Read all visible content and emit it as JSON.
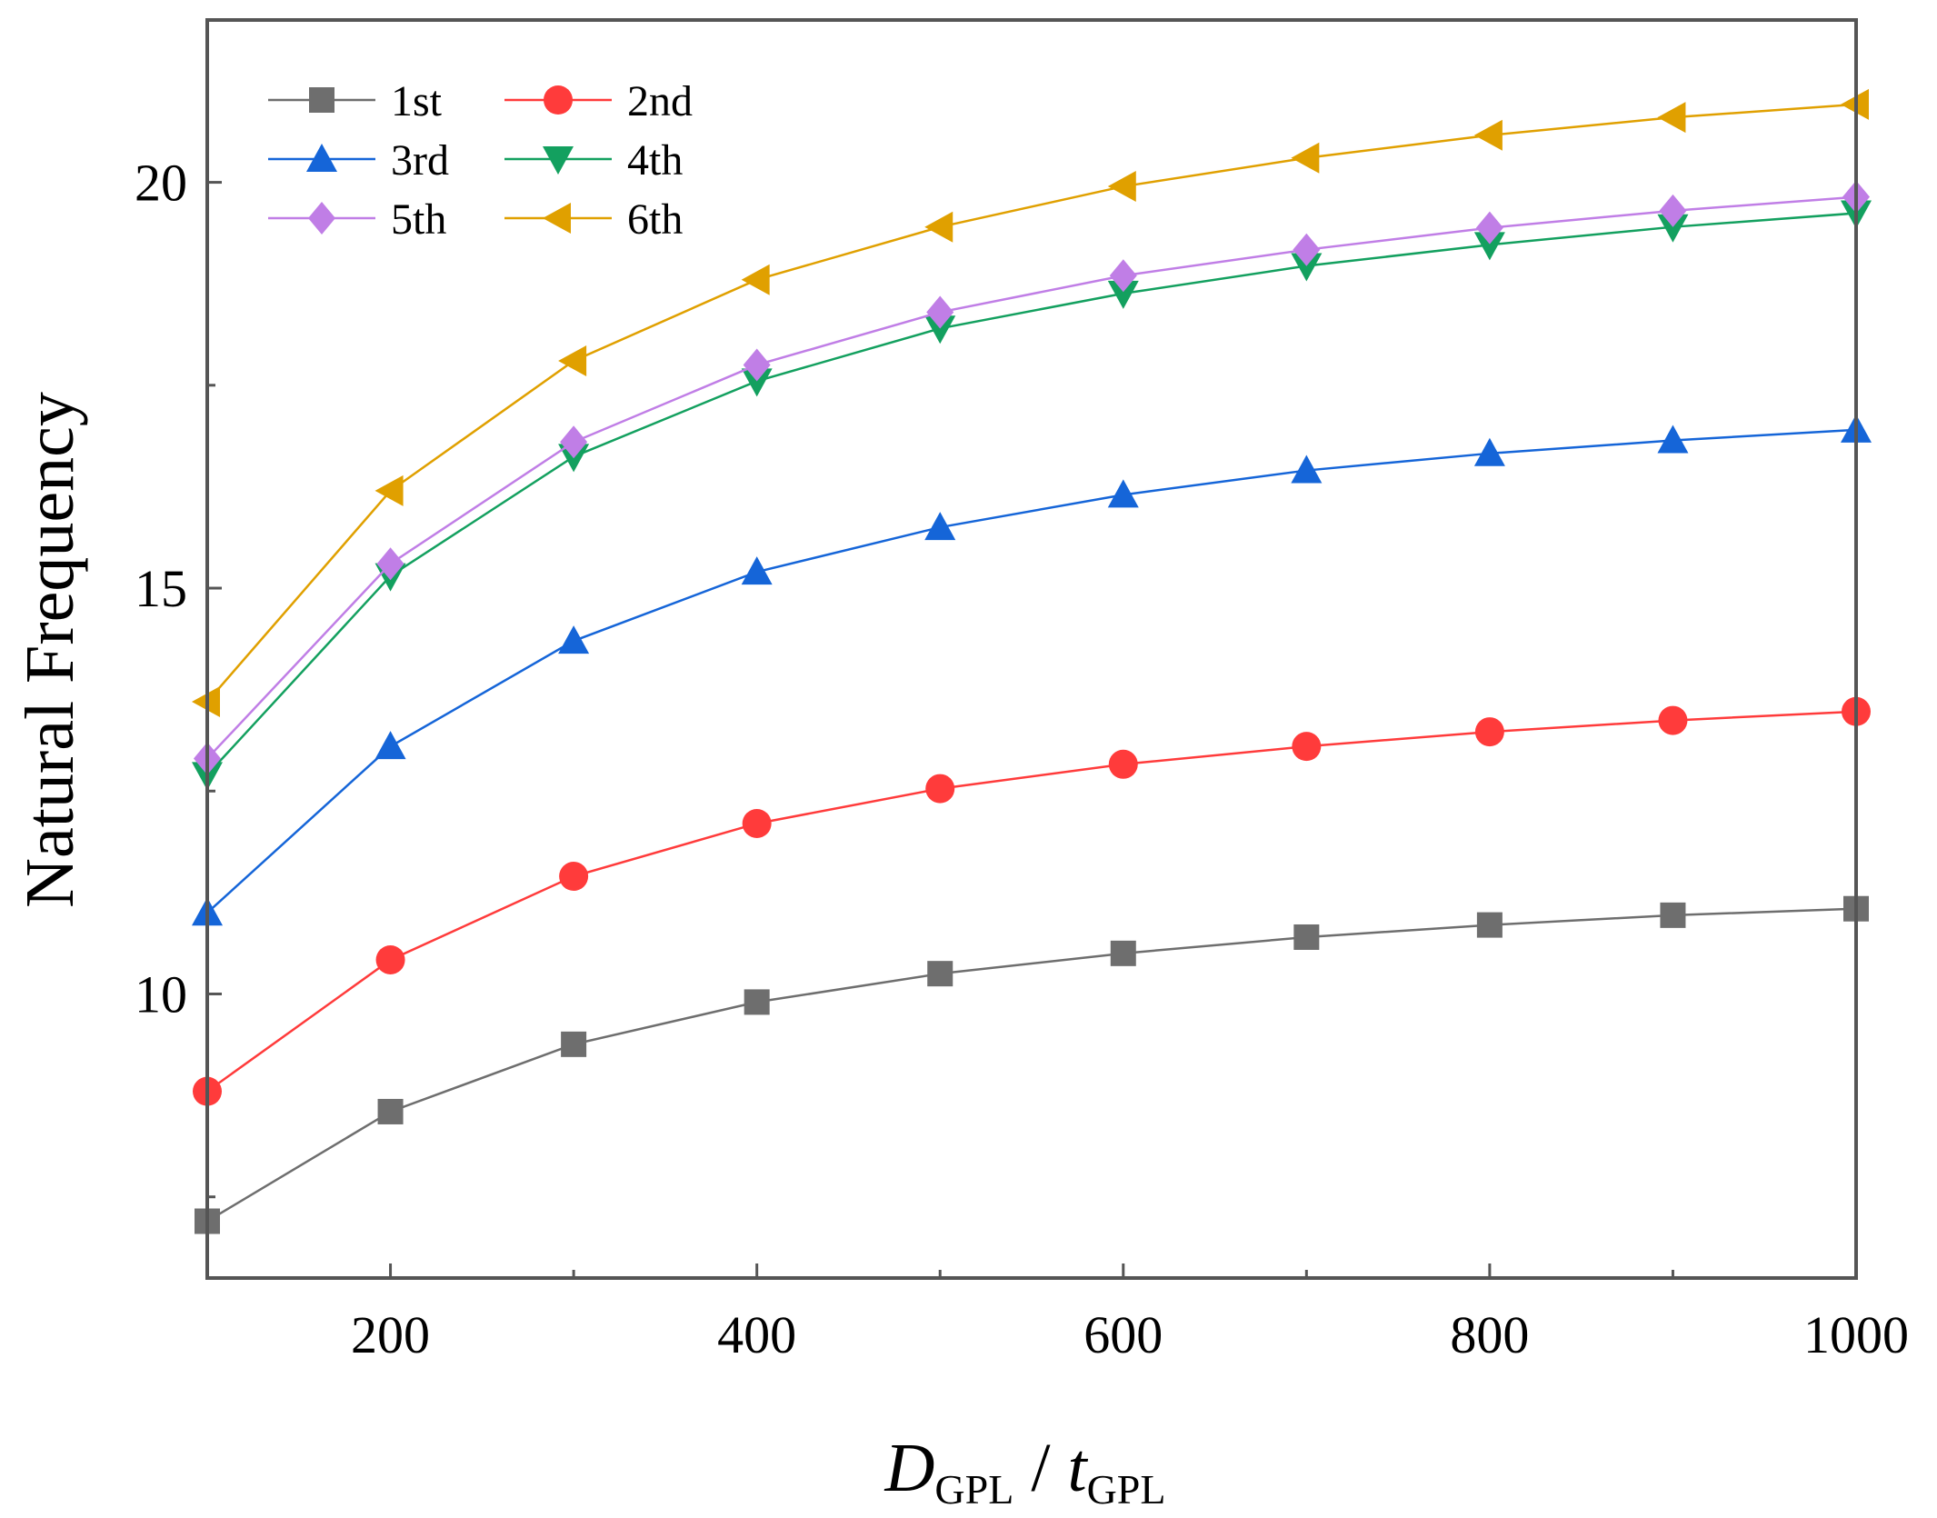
{
  "chart_data": {
    "type": "line",
    "x": [
      100,
      200,
      300,
      400,
      500,
      600,
      700,
      800,
      900,
      1000
    ],
    "xlabel": {
      "main": "D",
      "main_sub": "GPL",
      "sep": " / ",
      "second": "t",
      "second_sub": "GPL"
    },
    "ylabel": "Natural Frequency",
    "xlim": [
      100,
      1000
    ],
    "ylim": [
      6.5,
      22
    ],
    "xticks": [
      200,
      400,
      600,
      800,
      1000
    ],
    "yticks": [
      10,
      15,
      20
    ],
    "legend_position": "top-left",
    "series": [
      {
        "name": "1st",
        "color": "#6e6e6e",
        "marker": "square",
        "values": [
          7.2,
          8.55,
          9.38,
          9.9,
          10.25,
          10.5,
          10.7,
          10.85,
          10.97,
          11.05
        ]
      },
      {
        "name": "2nd",
        "color": "#ff3b3b",
        "marker": "circle",
        "values": [
          8.8,
          10.42,
          11.45,
          12.1,
          12.53,
          12.83,
          13.05,
          13.23,
          13.37,
          13.48
        ]
      },
      {
        "name": "3rd",
        "color": "#1565d8",
        "marker": "triangle-up",
        "values": [
          11.0,
          13.05,
          14.35,
          15.2,
          15.75,
          16.15,
          16.45,
          16.66,
          16.82,
          16.95
        ]
      },
      {
        "name": "4th",
        "color": "#13a05f",
        "marker": "triangle-down",
        "values": [
          12.7,
          15.15,
          16.62,
          17.55,
          18.2,
          18.63,
          18.97,
          19.23,
          19.45,
          19.62
        ]
      },
      {
        "name": "5th",
        "color": "#c07ee6",
        "marker": "diamond",
        "values": [
          12.9,
          15.3,
          16.8,
          17.75,
          18.4,
          18.85,
          19.17,
          19.44,
          19.65,
          19.82
        ]
      },
      {
        "name": "6th",
        "color": "#e0a000",
        "marker": "triangle-left",
        "values": [
          13.6,
          16.2,
          17.8,
          18.8,
          19.45,
          19.95,
          20.3,
          20.58,
          20.8,
          20.96
        ]
      }
    ]
  }
}
